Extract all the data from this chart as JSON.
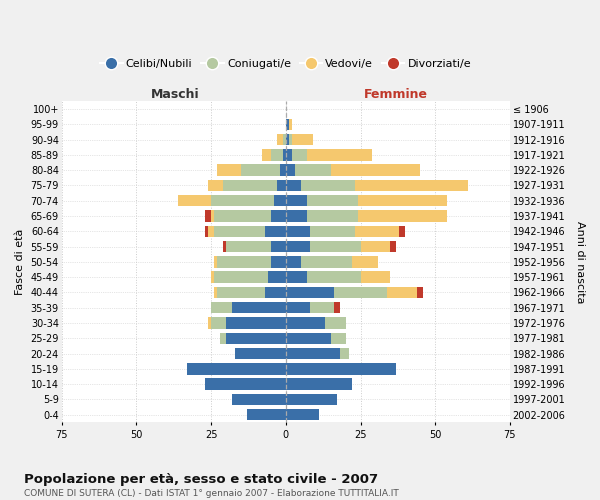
{
  "age_groups": [
    "0-4",
    "5-9",
    "10-14",
    "15-19",
    "20-24",
    "25-29",
    "30-34",
    "35-39",
    "40-44",
    "45-49",
    "50-54",
    "55-59",
    "60-64",
    "65-69",
    "70-74",
    "75-79",
    "80-84",
    "85-89",
    "90-94",
    "95-99",
    "100+"
  ],
  "birth_years": [
    "2002-2006",
    "1997-2001",
    "1992-1996",
    "1987-1991",
    "1982-1986",
    "1977-1981",
    "1972-1976",
    "1967-1971",
    "1962-1966",
    "1957-1961",
    "1952-1956",
    "1947-1951",
    "1942-1946",
    "1937-1941",
    "1932-1936",
    "1927-1931",
    "1922-1926",
    "1917-1921",
    "1912-1916",
    "1907-1911",
    "≤ 1906"
  ],
  "maschi_celibi": [
    13,
    18,
    27,
    33,
    17,
    20,
    20,
    18,
    7,
    6,
    5,
    5,
    7,
    5,
    4,
    3,
    2,
    1,
    0,
    0,
    0
  ],
  "maschi_coniugati": [
    0,
    0,
    0,
    0,
    0,
    2,
    5,
    7,
    16,
    18,
    18,
    15,
    17,
    19,
    21,
    18,
    13,
    4,
    1,
    0,
    0
  ],
  "maschi_vedovi": [
    0,
    0,
    0,
    0,
    0,
    0,
    1,
    0,
    1,
    1,
    1,
    0,
    2,
    1,
    11,
    5,
    8,
    3,
    2,
    0,
    0
  ],
  "maschi_divorziati": [
    0,
    0,
    0,
    0,
    0,
    0,
    0,
    0,
    0,
    0,
    0,
    1,
    1,
    2,
    0,
    0,
    0,
    0,
    0,
    0,
    0
  ],
  "femmine_nubili": [
    11,
    17,
    22,
    37,
    18,
    15,
    13,
    8,
    16,
    7,
    5,
    8,
    8,
    7,
    7,
    5,
    3,
    2,
    1,
    1,
    0
  ],
  "femmine_coniugate": [
    0,
    0,
    0,
    0,
    3,
    5,
    7,
    8,
    18,
    18,
    17,
    17,
    15,
    17,
    17,
    18,
    12,
    5,
    1,
    0,
    0
  ],
  "femmine_vedove": [
    0,
    0,
    0,
    0,
    0,
    0,
    0,
    0,
    10,
    10,
    9,
    10,
    15,
    30,
    30,
    38,
    30,
    22,
    7,
    1,
    0
  ],
  "femmine_divorziate": [
    0,
    0,
    0,
    0,
    0,
    0,
    0,
    2,
    2,
    0,
    0,
    2,
    2,
    0,
    0,
    0,
    0,
    0,
    0,
    0,
    0
  ],
  "color_celibi": "#3a6fa8",
  "color_coniugati": "#b5c9a1",
  "color_vedovi": "#f5c86e",
  "color_divorziati": "#c0392b",
  "xlim": 75,
  "bar_height": 0.75,
  "title": "Popolazione per età, sesso e stato civile - 2007",
  "subtitle": "COMUNE DI SUTERA (CL) - Dati ISTAT 1° gennaio 2007 - Elaborazione TUTTITALIA.IT",
  "ylabel_left": "Fasce di età",
  "ylabel_right": "Anni di nascita",
  "label_maschi": "Maschi",
  "label_femmine": "Femmine",
  "legend_labels": [
    "Celibi/Nubili",
    "Coniugati/e",
    "Vedovi/e",
    "Divorziati/e"
  ],
  "bg_color": "#f0f0f0",
  "plot_bg_color": "#ffffff",
  "grid_color": "#cccccc",
  "femmine_label_color": "#c0392b",
  "maschi_label_color": "#333333"
}
